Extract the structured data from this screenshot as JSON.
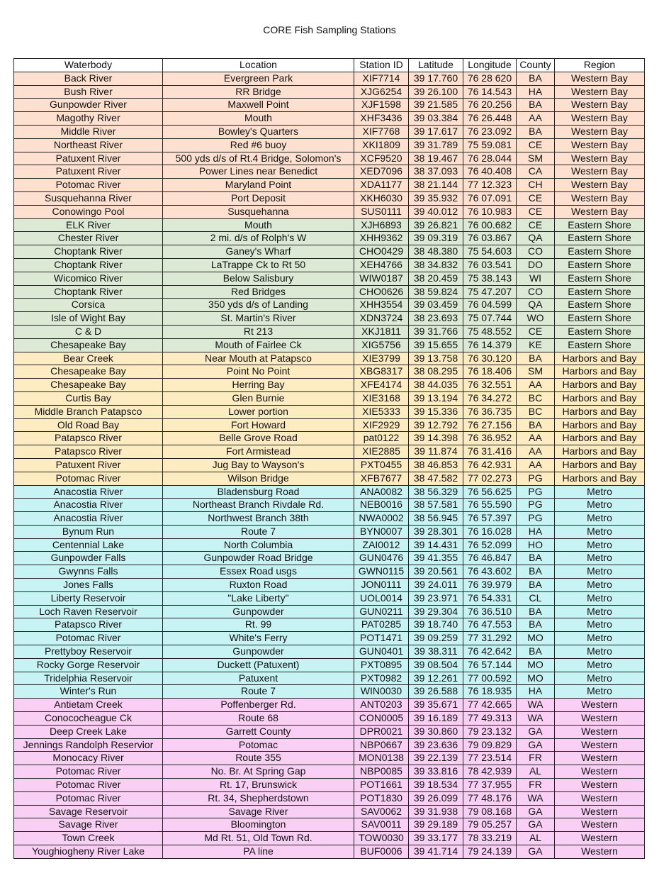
{
  "title": "CORE Fish Sampling Stations",
  "columns": [
    "Waterbody",
    "Location",
    "Station ID",
    "Latitude",
    "Longitude",
    "County",
    "Region"
  ],
  "region_colors": {
    "Western Bay": "#fde0cf",
    "Eastern Shore": "#dcead5",
    "Harbors and Bay": "#fdebc2",
    "Metro": "#c8f3f5",
    "Western": "#f9cff5"
  },
  "rows": [
    [
      "Back River",
      "Evergreen Park",
      "XIF7714",
      "39 17.760",
      "76 28 620",
      "BA",
      "Western Bay"
    ],
    [
      "Bush River",
      "RR Bridge",
      "XJG6254",
      "39 26.100",
      "76 14.543",
      "HA",
      "Western Bay"
    ],
    [
      "Gunpowder River",
      "Maxwell Point",
      "XJF1598",
      "39 21.585",
      "76 20.256",
      "BA",
      "Western Bay"
    ],
    [
      "Magothy River",
      "Mouth",
      "XHF3436",
      "39 03.384",
      "76 26.448",
      "AA",
      "Western Bay"
    ],
    [
      "Middle River",
      "Bowley's Quarters",
      "XIF7768",
      "39 17.617",
      "76 23.092",
      "BA",
      "Western Bay"
    ],
    [
      "Northeast River",
      "Red #6 buoy",
      "XKI1809",
      "39 31.789",
      "75 59.081",
      "CE",
      "Western Bay"
    ],
    [
      "Patuxent River",
      "500 yds d/s of Rt.4 Bridge, Solomon's",
      "XCF9520",
      "38 19.467",
      "76 28.044",
      "SM",
      "Western Bay"
    ],
    [
      "Patuxent River",
      "Power Lines near Benedict",
      "XED7096",
      "38 37.093",
      "76 40.408",
      "CA",
      "Western Bay"
    ],
    [
      "Potomac River",
      "Maryland Point",
      "XDA1177",
      "38 21.144",
      "77 12.323",
      "CH",
      "Western Bay"
    ],
    [
      "Susquehanna River",
      "Port Deposit",
      "XKH6030",
      "39 35.932",
      "76 07.091",
      "CE",
      "Western Bay"
    ],
    [
      "Conowingo Pool",
      "Susquehanna",
      "SUS0111",
      "39 40.012",
      "76 10.983",
      "CE",
      "Western Bay"
    ],
    [
      "ELK River",
      "Mouth",
      "XJH6893",
      "39 26.821",
      "76 00.682",
      "CE",
      "Eastern Shore"
    ],
    [
      "Chester River",
      "2 mi. d/s of Rolph's W",
      "XHH9362",
      "39 09.319",
      "76 03.867",
      "QA",
      "Eastern Shore"
    ],
    [
      "Choptank River",
      "Ganey's Wharf",
      "CHO0429",
      "38 48.380",
      "75 54.603",
      "CO",
      "Eastern Shore"
    ],
    [
      "Choptank River",
      "LaTrappe Ck to Rt 50",
      "XEH4766",
      "38 34.832",
      "76 03.541",
      "DO",
      "Eastern Shore"
    ],
    [
      "Wicomico River",
      "Below Salisbury",
      "WIW0187",
      "38 20.459",
      "75 38.143",
      "WI",
      "Eastern Shore"
    ],
    [
      "Choptank River",
      "Red Bridges",
      "CHO0626",
      "38 59.824",
      "75 47.207",
      "CO",
      "Eastern Shore"
    ],
    [
      "Corsica",
      "350 yds d/s of Landing",
      "XHH3554",
      "39 03.459",
      "76 04.599",
      "QA",
      "Eastern Shore"
    ],
    [
      "Isle of Wight Bay",
      "St. Martin's River",
      "XDN3724",
      "38 23.693",
      "75 07.744",
      "WO",
      "Eastern Shore"
    ],
    [
      "C & D",
      "Rt 213",
      "XKJ1811",
      "39 31.766",
      "75 48.552",
      "CE",
      "Eastern Shore"
    ],
    [
      "Chesapeake Bay",
      "Mouth of Fairlee Ck",
      "XIG5756",
      "39 15.655",
      "76 14.379",
      "KE",
      "Eastern Shore"
    ],
    [
      "Bear Creek",
      "Near Mouth at Patapsco",
      "XIE3799",
      "39 13.758",
      "76 30.120",
      "BA",
      "Harbors and Bay"
    ],
    [
      "Chesapeake Bay",
      "Point No Point",
      "XBG8317",
      "38 08.295",
      "76 18.406",
      "SM",
      "Harbors and Bay"
    ],
    [
      "Chesapeake Bay",
      "Herring Bay",
      "XFE4174",
      "38 44.035",
      "76 32.551",
      "AA",
      "Harbors and Bay"
    ],
    [
      "Curtis Bay",
      "Glen Burnie",
      "XIE3168",
      "39 13.194",
      "76 34.272",
      "BC",
      "Harbors and Bay"
    ],
    [
      "Middle Branch Patapsco",
      "Lower portion",
      "XIE5333",
      "39 15.336",
      "76 36.735",
      "BC",
      "Harbors and Bay"
    ],
    [
      "Old Road Bay",
      "Fort Howard",
      "XIF2929",
      "39 12.792",
      "76 27.156",
      "BA",
      "Harbors and Bay"
    ],
    [
      "Patapsco River",
      "Belle Grove Road",
      "pat0122",
      "39 14.398",
      "76 36.952",
      "AA",
      "Harbors and Bay"
    ],
    [
      "Patapsco River",
      "Fort Armistead",
      "XIE2885",
      "39 11.874",
      "76 31.416",
      "AA",
      "Harbors and Bay"
    ],
    [
      "Patuxent River",
      "Jug Bay to Wayson's",
      "PXT0455",
      "38 46.853",
      "76 42.931",
      "AA",
      "Harbors and Bay"
    ],
    [
      "Potomac River",
      "Wilson Bridge",
      "XFB7677",
      "38 47.582",
      "77 02.273",
      "PG",
      "Harbors and Bay"
    ],
    [
      "Anacostia River",
      "Bladensburg Road",
      "ANA0082",
      "38 56.329",
      "76 56.625",
      "PG",
      "Metro"
    ],
    [
      "Anacostia River",
      "Northeast Branch Rivdale Rd.",
      "NEB0016",
      "38 57.581",
      "76 55.590",
      "PG",
      "Metro"
    ],
    [
      "Anacostia River",
      "Northwest Branch 38th",
      "NWA0002",
      "38 56.945",
      "76 57.397",
      "PG",
      "Metro"
    ],
    [
      "Bynum Run",
      "Route 7",
      "BYN0007",
      "39 28.301",
      "76 16.028",
      "HA",
      "Metro"
    ],
    [
      "Centennial Lake",
      "North Columbia",
      "ZAI0012",
      "39 14.431",
      "76 52.099",
      "HO",
      "Metro"
    ],
    [
      "Gunpowder Falls",
      "Gunpowder Road Bridge",
      "GUN0476",
      "39 41.355",
      "76 46.847",
      "BA",
      "Metro"
    ],
    [
      "Gwynns Falls",
      "Essex Road usgs",
      "GWN0115",
      "39 20.561",
      "76 43.602",
      "BA",
      "Metro"
    ],
    [
      "Jones Falls",
      "Ruxton Road",
      "JON0111",
      "39 24.011",
      "76 39.979",
      "BA",
      "Metro"
    ],
    [
      "Liberty Reservoir",
      "\"Lake Liberty\"",
      "UOL0014",
      "39 23.971",
      "76 54.331",
      "CL",
      "Metro"
    ],
    [
      "Loch Raven Reservoir",
      "Gunpowder",
      "GUN0211",
      "39 29.304",
      "76 36.510",
      "BA",
      "Metro"
    ],
    [
      "Patapsco River",
      "Rt. 99",
      "PAT0285",
      "39 18.740",
      "76 47.553",
      "BA",
      "Metro"
    ],
    [
      "Potomac River",
      "White's Ferry",
      "POT1471",
      "39 09.259",
      "77 31.292",
      "MO",
      "Metro"
    ],
    [
      "Prettyboy Reservoir",
      "Gunpowder",
      "GUN0401",
      "39 38.311",
      "76 42.642",
      "BA",
      "Metro"
    ],
    [
      "Rocky Gorge Reservoir",
      "Duckett (Patuxent)",
      "PXT0895",
      "39 08.504",
      "76 57.144",
      "MO",
      "Metro"
    ],
    [
      "Tridelphia Reservoir",
      "Patuxent",
      "PXT0982",
      "39 12.261",
      "77 00.592",
      "MO",
      "Metro"
    ],
    [
      "Winter's Run",
      "Route 7",
      "WIN0030",
      "39 26.588",
      "76 18.935",
      "HA",
      "Metro"
    ],
    [
      "Antietam Creek",
      "Poffenberger Rd.",
      "ANT0203",
      "39 35.671",
      "77 42.665",
      "WA",
      "Western"
    ],
    [
      "Conococheague Ck",
      "Route 68",
      "CON0005",
      "39 16.189",
      "77 49.313",
      "WA",
      "Western"
    ],
    [
      "Deep Creek Lake",
      "Garrett County",
      "DPR0021",
      "39 30.860",
      "79 23.132",
      "GA",
      "Western"
    ],
    [
      "Jennings Randolph Reservior",
      "Potomac",
      "NBP0667",
      "39 23.636",
      "79 09.829",
      "GA",
      "Western"
    ],
    [
      "Monocacy River",
      "Route 355",
      "MON0138",
      "39 22.139",
      "77 23.514",
      "FR",
      "Western"
    ],
    [
      "Potomac River",
      "No. Br. At Spring Gap",
      "NBP0085",
      "39 33.816",
      "78 42.939",
      "AL",
      "Western"
    ],
    [
      "Potomac River",
      "Rt. 17, Brunswick",
      "POT1661",
      "39 18.534",
      "77 37.955",
      "FR",
      "Western"
    ],
    [
      "Potomac River",
      "Rt. 34, Shepherdstown",
      "POT1830",
      "39 26.099",
      "77 48.176",
      "WA",
      "Western"
    ],
    [
      "Savage Reservoir",
      "Savage River",
      "SAV0062",
      "39 31.938",
      "79 08.168",
      "GA",
      "Western"
    ],
    [
      "Savage River",
      "Bloomington",
      "SAV0011",
      "39 29.189",
      "79 05.257",
      "GA",
      "Western"
    ],
    [
      "Town Creek",
      "Md Rt. 51, Old Town Rd.",
      "TOW0030",
      "39 33.177",
      "78 33.219",
      "AL",
      "Western"
    ],
    [
      "Youghiogheny River Lake",
      "PA line",
      "BUF0006",
      "39 41.714",
      "79 24.139",
      "GA",
      "Western"
    ]
  ]
}
